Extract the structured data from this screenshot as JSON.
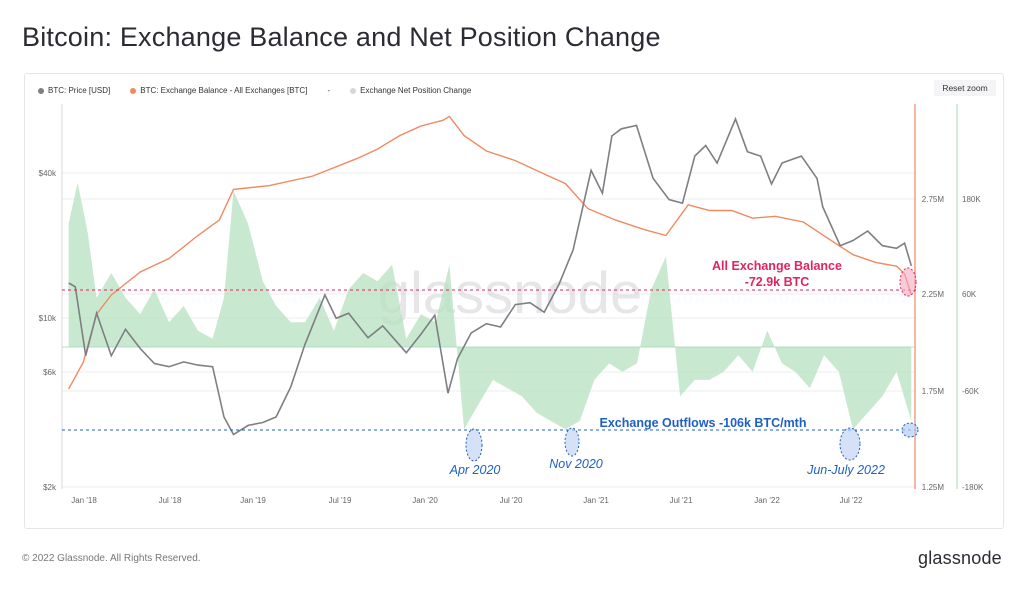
{
  "header": {
    "title": "Bitcoin: Exchange Balance and Net Position Change"
  },
  "toolbar": {
    "reset_zoom_label": "Reset zoom"
  },
  "legend": {
    "items": [
      {
        "label": "BTC: Price [USD]",
        "color": "#7c7f83"
      },
      {
        "label": "BTC: Exchange Balance - All Exchanges [BTC]",
        "color": "#ef8a62"
      },
      {
        "label": "-",
        "color": "#555555"
      },
      {
        "label": "Exchange Net Position Change",
        "color": "#d6d6d6"
      }
    ]
  },
  "watermark": "glassnode",
  "footer": {
    "copyright": "© 2022 Glassnode. All Rights Reserved.",
    "brand": "glassnode"
  },
  "chart_data": {
    "type": "line",
    "x_ticks": [
      "Jan '18",
      "Jul '18",
      "Jan '19",
      "Jul '19",
      "Jan '20",
      "Jul '20",
      "Jan '21",
      "Jul '21",
      "Jan '22",
      "Jul '22"
    ],
    "y_left_ticks": [
      "$40k",
      "$10k",
      "$6k",
      "$2k"
    ],
    "y_balance_ticks": [
      "2.75M",
      "2.25M",
      "1.75M",
      "1.25M"
    ],
    "y_netpos_ticks": [
      "180K",
      "60K",
      "-60K",
      "-180K"
    ],
    "series": [
      {
        "name": "BTC: Price [USD]",
        "color": "#7c7f83",
        "axis": "price_log",
        "x": [
          "2018-01-01",
          "2018-01-15",
          "2018-02-06",
          "2018-03-01",
          "2018-04-01",
          "2018-05-01",
          "2018-06-01",
          "2018-07-01",
          "2018-08-01",
          "2018-09-01",
          "2018-10-01",
          "2018-11-01",
          "2018-11-25",
          "2018-12-15",
          "2019-01-15",
          "2019-02-15",
          "2019-03-15",
          "2019-04-15",
          "2019-05-15",
          "2019-06-26",
          "2019-07-20",
          "2019-08-15",
          "2019-09-25",
          "2019-10-26",
          "2019-12-15",
          "2020-01-15",
          "2020-02-13",
          "2020-03-12",
          "2020-04-01",
          "2020-04-30",
          "2020-06-01",
          "2020-07-01",
          "2020-08-01",
          "2020-09-01",
          "2020-10-01",
          "2020-11-01",
          "2020-12-01",
          "2021-01-08",
          "2021-02-01",
          "2021-02-21",
          "2021-03-13",
          "2021-04-14",
          "2021-05-19",
          "2021-06-22",
          "2021-07-20",
          "2021-08-15",
          "2021-09-07",
          "2021-10-01",
          "2021-11-09",
          "2021-12-04",
          "2022-01-01",
          "2022-01-24",
          "2022-02-15",
          "2022-03-28",
          "2022-04-30",
          "2022-05-12",
          "2022-06-18",
          "2022-07-15",
          "2022-08-15",
          "2022-09-15",
          "2022-10-15",
          "2022-11-01",
          "2022-11-15"
        ],
        "values": [
          14000,
          13500,
          7000,
          10500,
          7000,
          9000,
          7500,
          6500,
          6300,
          6600,
          6400,
          6300,
          3900,
          3300,
          3600,
          3700,
          3900,
          5200,
          7800,
          12500,
          10000,
          10500,
          8300,
          9300,
          7200,
          8600,
          10300,
          4900,
          6800,
          8700,
          9500,
          9200,
          11400,
          11600,
          10600,
          13800,
          19200,
          41000,
          33000,
          57000,
          61000,
          63000,
          38000,
          31000,
          30000,
          47000,
          52000,
          44000,
          67000,
          49000,
          47000,
          36000,
          44000,
          47000,
          38000,
          29000,
          20000,
          21000,
          23000,
          20000,
          19500,
          20500,
          16500
        ]
      },
      {
        "name": "BTC: Exchange Balance - All Exchanges [BTC]",
        "color": "#ef8a62",
        "axis": "balance",
        "x": [
          "2018-01-01",
          "2018-02-01",
          "2018-03-01",
          "2018-04-01",
          "2018-06-01",
          "2018-08-01",
          "2018-10-01",
          "2018-11-15",
          "2018-12-15",
          "2019-03-01",
          "2019-06-01",
          "2019-09-01",
          "2019-10-15",
          "2019-12-01",
          "2020-01-15",
          "2020-03-01",
          "2020-03-15",
          "2020-04-15",
          "2020-06-01",
          "2020-08-01",
          "2020-10-01",
          "2020-11-15",
          "2021-01-01",
          "2021-03-01",
          "2021-05-01",
          "2021-06-15",
          "2021-08-01",
          "2021-09-15",
          "2021-11-01",
          "2021-12-15",
          "2022-02-01",
          "2022-04-01",
          "2022-06-01",
          "2022-07-15",
          "2022-09-01",
          "2022-10-15",
          "2022-11-01",
          "2022-11-15"
        ],
        "values": [
          1760000,
          1900000,
          2150000,
          2250000,
          2370000,
          2440000,
          2560000,
          2640000,
          2800000,
          2820000,
          2870000,
          2960000,
          3010000,
          3080000,
          3130000,
          3160000,
          3180000,
          3080000,
          3000000,
          2950000,
          2880000,
          2830000,
          2700000,
          2640000,
          2590000,
          2560000,
          2720000,
          2690000,
          2690000,
          2650000,
          2660000,
          2630000,
          2530000,
          2460000,
          2420000,
          2400000,
          2360000,
          2250000
        ]
      },
      {
        "name": "Exchange Net Position Change",
        "color": "#b5e2bf",
        "axis": "netpos",
        "x": [
          "2018-01-01",
          "2018-01-20",
          "2018-02-10",
          "2018-03-01",
          "2018-04-01",
          "2018-05-01",
          "2018-06-01",
          "2018-07-01",
          "2018-08-01",
          "2018-09-01",
          "2018-10-01",
          "2018-11-01",
          "2018-11-25",
          "2018-12-15",
          "2019-01-15",
          "2019-02-15",
          "2019-03-15",
          "2019-04-15",
          "2019-05-15",
          "2019-06-15",
          "2019-07-15",
          "2019-08-15",
          "2019-09-15",
          "2019-10-15",
          "2019-11-15",
          "2019-12-15",
          "2020-01-15",
          "2020-02-15",
          "2020-03-15",
          "2020-04-15",
          "2020-05-15",
          "2020-06-15",
          "2020-07-15",
          "2020-08-15",
          "2020-09-15",
          "2020-10-15",
          "2020-11-15",
          "2020-12-15",
          "2021-01-15",
          "2021-02-15",
          "2021-03-15",
          "2021-04-15",
          "2021-05-15",
          "2021-06-15",
          "2021-07-15",
          "2021-08-15",
          "2021-09-15",
          "2021-10-15",
          "2021-11-15",
          "2021-12-15",
          "2022-01-15",
          "2022-02-15",
          "2022-03-15",
          "2022-04-15",
          "2022-05-15",
          "2022-06-15",
          "2022-07-15",
          "2022-08-15",
          "2022-09-15",
          "2022-10-15",
          "2022-11-15"
        ],
        "values": [
          150000,
          200000,
          140000,
          60000,
          90000,
          60000,
          40000,
          70000,
          30000,
          50000,
          20000,
          10000,
          60000,
          190000,
          150000,
          80000,
          50000,
          30000,
          30000,
          60000,
          20000,
          70000,
          90000,
          80000,
          100000,
          10000,
          40000,
          30000,
          100000,
          -100000,
          -70000,
          -40000,
          -50000,
          -60000,
          -80000,
          -90000,
          -100000,
          -90000,
          -40000,
          -20000,
          -30000,
          -20000,
          70000,
          110000,
          -60000,
          -40000,
          -40000,
          -30000,
          -10000,
          -30000,
          20000,
          -20000,
          -30000,
          -50000,
          -10000,
          -30000,
          -100000,
          -80000,
          -60000,
          -30000,
          -90000
        ]
      }
    ],
    "annotations": [
      {
        "text": "All Exchange Balance",
        "color": "#e0245e"
      },
      {
        "text": "-72.9k BTC",
        "color": "#e0245e"
      },
      {
        "text": "Exchange Outflows -106k BTC/mth",
        "color": "#1f5fc4"
      },
      {
        "text": "Apr 2020",
        "color": "#1f5fc4"
      },
      {
        "text": "Nov 2020",
        "color": "#1f5fc4"
      },
      {
        "text": "Jun-July 2022",
        "color": "#1f5fc4"
      }
    ],
    "grid": true,
    "legend_position": "top-left"
  }
}
